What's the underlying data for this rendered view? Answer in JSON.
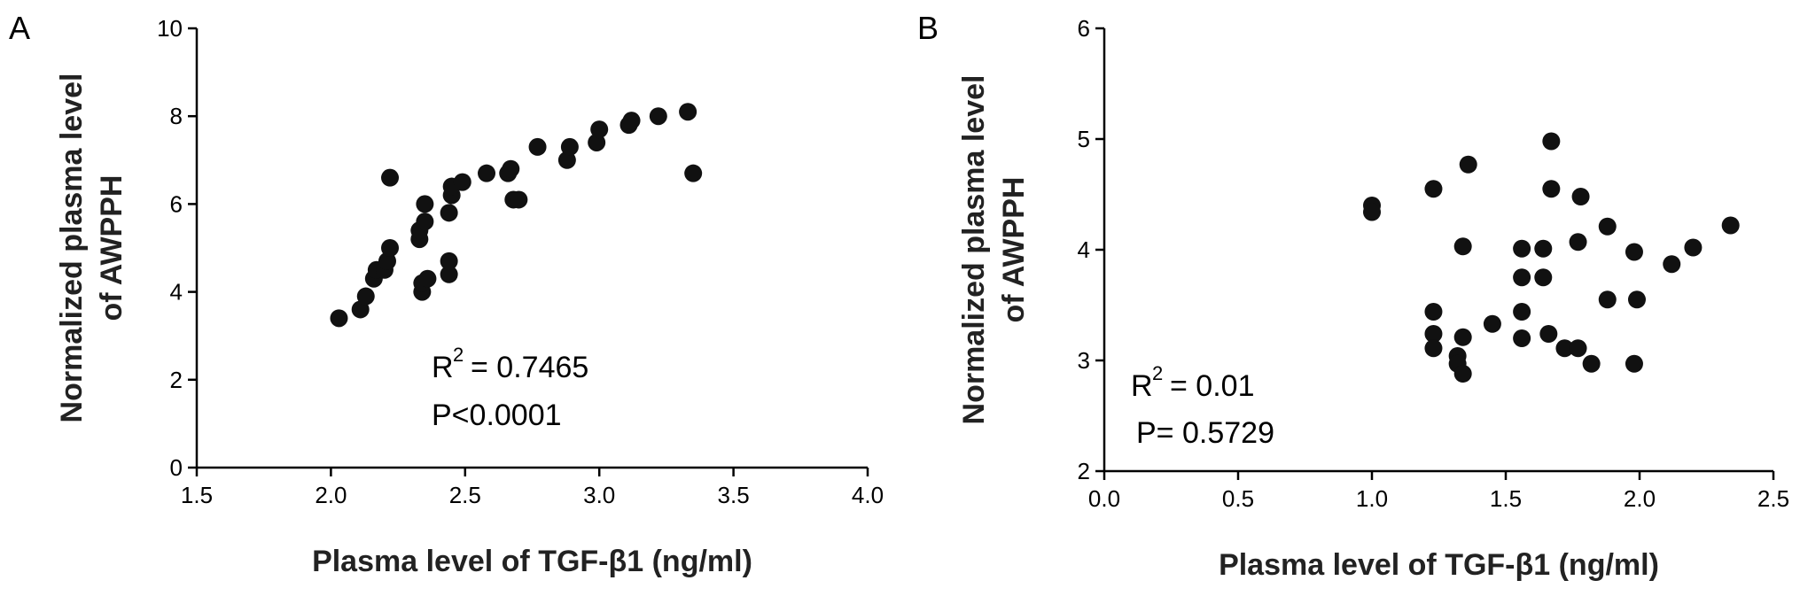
{
  "chart_data": [
    {
      "type": "scatter",
      "panel": "A",
      "xlabel": "Plasma level of TGF-β1 (ng/ml)",
      "ylabel_line1": "Normalized plasma level",
      "ylabel_line2": "of AWPPH",
      "xlim": [
        1.5,
        4.0
      ],
      "ylim": [
        0,
        10
      ],
      "xticks": [
        "1.5",
        "2.0",
        "2.5",
        "3.0",
        "3.5",
        "4.0"
      ],
      "yticks": [
        "0",
        "2",
        "4",
        "6",
        "8",
        "10"
      ],
      "r2_prefix": "R",
      "r2_exp": "2",
      "r2_value": "= 0.7465",
      "p_text": "P<0.0001",
      "points": [
        [
          2.03,
          3.4
        ],
        [
          2.11,
          3.6
        ],
        [
          2.13,
          3.9
        ],
        [
          2.16,
          4.3
        ],
        [
          2.17,
          4.5
        ],
        [
          2.2,
          4.5
        ],
        [
          2.21,
          4.7
        ],
        [
          2.22,
          5.0
        ],
        [
          2.22,
          6.6
        ],
        [
          2.33,
          5.2
        ],
        [
          2.33,
          5.4
        ],
        [
          2.34,
          4.0
        ],
        [
          2.34,
          4.2
        ],
        [
          2.35,
          5.6
        ],
        [
          2.35,
          6.0
        ],
        [
          2.36,
          4.3
        ],
        [
          2.44,
          4.4
        ],
        [
          2.44,
          4.7
        ],
        [
          2.44,
          5.8
        ],
        [
          2.45,
          6.2
        ],
        [
          2.45,
          6.4
        ],
        [
          2.49,
          6.5
        ],
        [
          2.58,
          6.7
        ],
        [
          2.66,
          6.7
        ],
        [
          2.67,
          6.8
        ],
        [
          2.68,
          6.1
        ],
        [
          2.7,
          6.1
        ],
        [
          2.77,
          7.3
        ],
        [
          2.88,
          7.0
        ],
        [
          2.89,
          7.3
        ],
        [
          2.99,
          7.4
        ],
        [
          3.0,
          7.7
        ],
        [
          3.11,
          7.8
        ],
        [
          3.12,
          7.9
        ],
        [
          3.22,
          8.0
        ],
        [
          3.33,
          8.1
        ],
        [
          3.35,
          6.7
        ]
      ]
    },
    {
      "type": "scatter",
      "panel": "B",
      "xlabel": "Plasma level of TGF-β1 (ng/ml)",
      "ylabel_line1": "Normalized plasma level",
      "ylabel_line2": "of AWPPH",
      "xlim": [
        0.0,
        2.5
      ],
      "ylim": [
        2,
        6
      ],
      "xticks": [
        "0.0",
        "0.5",
        "1.0",
        "1.5",
        "2.0",
        "2.5"
      ],
      "yticks": [
        "2",
        "3",
        "4",
        "5",
        "6"
      ],
      "r2_prefix": "R",
      "r2_exp": "2",
      "r2_value": "= 0.01",
      "p_text": "P= 0.5729",
      "points": [
        [
          1.0,
          4.4
        ],
        [
          1.0,
          4.34
        ],
        [
          1.23,
          4.55
        ],
        [
          1.23,
          3.44
        ],
        [
          1.23,
          3.24
        ],
        [
          1.23,
          3.11
        ],
        [
          1.32,
          3.04
        ],
        [
          1.32,
          2.97
        ],
        [
          1.34,
          2.88
        ],
        [
          1.34,
          3.21
        ],
        [
          1.34,
          4.03
        ],
        [
          1.36,
          4.77
        ],
        [
          1.45,
          3.33
        ],
        [
          1.56,
          4.01
        ],
        [
          1.56,
          3.75
        ],
        [
          1.56,
          3.44
        ],
        [
          1.56,
          3.2
        ],
        [
          1.64,
          4.01
        ],
        [
          1.64,
          3.75
        ],
        [
          1.66,
          3.24
        ],
        [
          1.67,
          4.98
        ],
        [
          1.67,
          4.55
        ],
        [
          1.72,
          3.11
        ],
        [
          1.77,
          4.07
        ],
        [
          1.77,
          3.11
        ],
        [
          1.78,
          4.48
        ],
        [
          1.82,
          2.97
        ],
        [
          1.88,
          4.21
        ],
        [
          1.88,
          3.55
        ],
        [
          1.98,
          3.98
        ],
        [
          1.98,
          2.97
        ],
        [
          1.99,
          3.55
        ],
        [
          2.12,
          3.87
        ],
        [
          2.2,
          4.02
        ],
        [
          2.34,
          4.22
        ]
      ]
    }
  ]
}
